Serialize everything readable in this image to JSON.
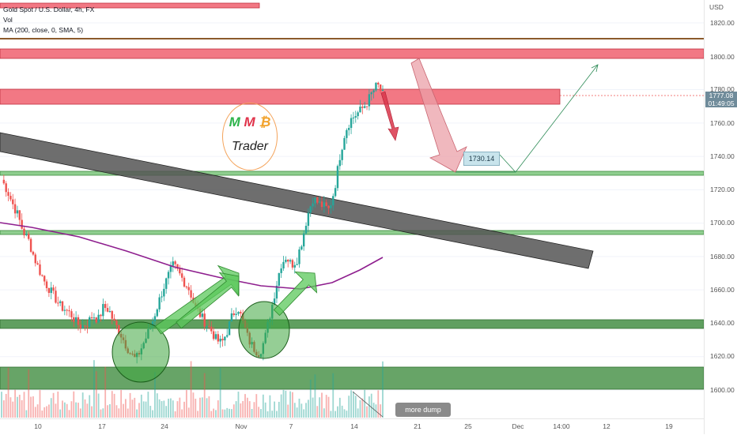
{
  "legend": {
    "symbol_line": "Gold Spot / U.S. Dollar, 4h, FX",
    "vol_label": "Vol",
    "ma_label": "MA (200, close, 0, SMA, 5)"
  },
  "price_axis": {
    "currency": "USD",
    "ticks": [
      "1820.00",
      "1800.00",
      "1780.00",
      "1760.00",
      "1740.00",
      "1720.00",
      "1700.00",
      "1680.00",
      "1660.00",
      "1640.00",
      "1620.00",
      "1600.00"
    ],
    "current_price": "1777.08",
    "countdown": "01:49:05"
  },
  "time_axis": {
    "ticks": [
      "10",
      "17",
      "24",
      "Nov",
      "7",
      "14",
      "21",
      "25",
      "Dec",
      "14:00",
      "12",
      "19"
    ]
  },
  "annotations": {
    "target_label": "1730.14",
    "note": "more dump"
  },
  "logo": {
    "m1": "M",
    "m2": "M",
    "m3": "₿",
    "trader": "Trader"
  },
  "colors": {
    "candle_up": "#26a69a",
    "candle_down": "#ef5350",
    "ma_line": "#8e1e8e",
    "resistance_zone": "#f0606f",
    "support_zone": "#5f9f5f",
    "channel": "#555555",
    "brown_line": "#8b5a2b"
  },
  "chart_data": {
    "type": "candlestick",
    "symbol": "Gold Spot / U.S. Dollar",
    "timeframe": "4h",
    "y_range": [
      1588,
      1826
    ],
    "current_price": 1777.08,
    "target_price": 1730.14,
    "price_path": [
      1726,
      1720,
      1712,
      1705,
      1695,
      1690,
      1680,
      1672,
      1665,
      1660,
      1655,
      1650,
      1648,
      1645,
      1640,
      1638,
      1640,
      1645,
      1642,
      1650,
      1648,
      1640,
      1635,
      1628,
      1622,
      1618,
      1625,
      1632,
      1640,
      1650,
      1660,
      1668,
      1675,
      1670,
      1665,
      1660,
      1650,
      1645,
      1640,
      1636,
      1630,
      1628,
      1635,
      1645,
      1650,
      1640,
      1630,
      1625,
      1622,
      1630,
      1645,
      1660,
      1675,
      1680,
      1675,
      1678,
      1690,
      1705,
      1715,
      1712,
      1710,
      1708,
      1720,
      1740,
      1755,
      1762,
      1765,
      1768,
      1772,
      1778,
      1783,
      1777
    ]
  }
}
